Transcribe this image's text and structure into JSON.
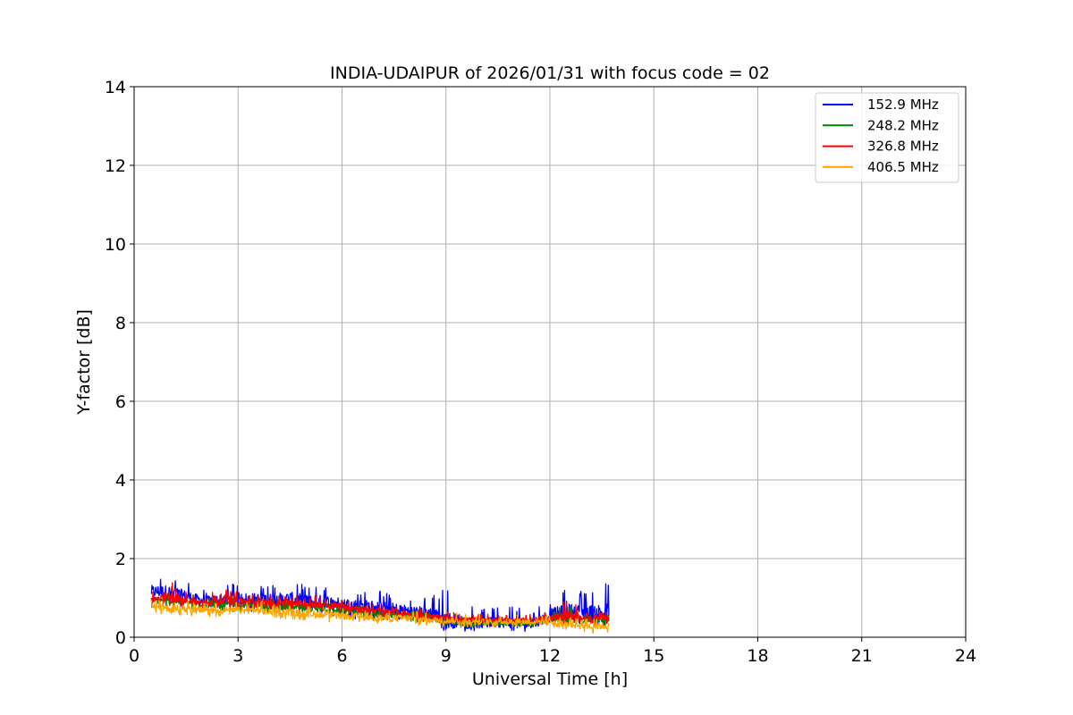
{
  "chart_data": {
    "type": "line",
    "title": "INDIA-UDAIPUR of 2026/01/31 with focus code = 02",
    "xlabel": "Universal Time [h]",
    "ylabel": "Y-factor [dB]",
    "xlim": [
      0,
      24
    ],
    "ylim": [
      0,
      14
    ],
    "xticks": [
      0,
      3,
      6,
      9,
      12,
      15,
      18,
      21,
      24
    ],
    "yticks": [
      0,
      2,
      4,
      6,
      8,
      10,
      12,
      14
    ],
    "grid": true,
    "legend_position": "top-right",
    "series": [
      {
        "name": "152.9 MHz",
        "color": "#0000ff",
        "x": [
          0.5,
          1.0,
          1.5,
          2.0,
          2.5,
          3.0,
          3.5,
          4.0,
          4.5,
          5.0,
          5.5,
          6.0,
          6.5,
          7.0,
          7.5,
          8.0,
          8.5,
          9.0,
          9.5,
          10.0,
          10.5,
          11.0,
          11.5,
          12.0,
          12.5,
          13.0,
          13.7
        ],
        "y": [
          1.2,
          1.2,
          1.05,
          0.95,
          0.95,
          1.0,
          1.0,
          0.95,
          1.0,
          0.95,
          0.95,
          0.9,
          0.85,
          0.8,
          0.75,
          0.7,
          0.65,
          0.3,
          0.35,
          0.3,
          0.35,
          0.3,
          0.3,
          0.6,
          0.65,
          0.6,
          0.6
        ],
        "y_low": [
          0.8,
          0.8,
          0.75,
          0.7,
          0.7,
          0.65,
          0.65,
          0.6,
          0.55,
          0.5,
          0.5,
          0.5,
          0.45,
          0.4,
          0.35,
          0.35,
          0.3,
          0.15,
          0.15,
          0.15,
          0.15,
          0.15,
          0.15,
          0.2,
          0.25,
          0.25,
          0.25
        ],
        "y_high": [
          1.55,
          1.55,
          1.45,
          1.2,
          1.35,
          1.4,
          1.35,
          1.4,
          1.45,
          1.3,
          1.3,
          1.2,
          1.15,
          1.2,
          1.1,
          1.0,
          1.0,
          1.35,
          0.9,
          0.7,
          0.95,
          0.8,
          0.7,
          0.95,
          1.25,
          1.2,
          1.4
        ]
      },
      {
        "name": "248.2 MHz",
        "color": "#008000",
        "x": [
          0.5,
          1.0,
          1.5,
          2.0,
          2.5,
          3.0,
          3.5,
          4.0,
          4.5,
          5.0,
          5.5,
          6.0,
          6.5,
          7.0,
          7.5,
          8.0,
          8.5,
          9.0,
          9.5,
          10.0,
          10.5,
          11.0,
          11.5,
          12.0,
          12.5,
          13.0,
          13.7
        ],
        "y": [
          0.95,
          0.95,
          0.9,
          0.85,
          0.85,
          0.85,
          0.85,
          0.8,
          0.8,
          0.75,
          0.75,
          0.7,
          0.65,
          0.6,
          0.55,
          0.55,
          0.5,
          0.4,
          0.35,
          0.35,
          0.35,
          0.35,
          0.35,
          0.45,
          0.45,
          0.45,
          0.45
        ],
        "y_low": [
          0.75,
          0.75,
          0.7,
          0.7,
          0.65,
          0.65,
          0.65,
          0.6,
          0.6,
          0.55,
          0.55,
          0.5,
          0.5,
          0.45,
          0.4,
          0.4,
          0.35,
          0.25,
          0.25,
          0.25,
          0.25,
          0.25,
          0.25,
          0.3,
          0.3,
          0.3,
          0.3
        ],
        "y_high": [
          1.15,
          1.15,
          1.1,
          1.0,
          1.0,
          1.0,
          1.0,
          0.95,
          0.95,
          0.9,
          0.9,
          0.85,
          0.8,
          0.75,
          0.7,
          0.7,
          0.65,
          0.55,
          0.5,
          0.5,
          0.5,
          0.5,
          0.5,
          0.6,
          0.95,
          0.6,
          0.6
        ]
      },
      {
        "name": "326.8 MHz",
        "color": "#ff0000",
        "x": [
          0.5,
          1.0,
          1.5,
          2.0,
          2.5,
          3.0,
          3.5,
          4.0,
          4.5,
          5.0,
          5.5,
          6.0,
          6.5,
          7.0,
          7.5,
          8.0,
          8.5,
          9.0,
          9.5,
          10.0,
          10.5,
          11.0,
          11.5,
          12.0,
          12.5,
          13.0,
          13.7
        ],
        "y": [
          0.95,
          0.95,
          0.95,
          0.9,
          0.95,
          0.95,
          0.9,
          0.9,
          0.9,
          0.85,
          0.85,
          0.8,
          0.75,
          0.7,
          0.65,
          0.6,
          0.55,
          0.5,
          0.45,
          0.45,
          0.45,
          0.45,
          0.45,
          0.5,
          0.5,
          0.5,
          0.5
        ],
        "y_low": [
          0.75,
          0.75,
          0.75,
          0.7,
          0.75,
          0.75,
          0.7,
          0.7,
          0.7,
          0.65,
          0.65,
          0.6,
          0.55,
          0.5,
          0.5,
          0.45,
          0.4,
          0.35,
          0.35,
          0.35,
          0.35,
          0.35,
          0.35,
          0.35,
          0.35,
          0.35,
          0.35
        ],
        "y_high": [
          1.2,
          1.6,
          1.15,
          1.1,
          1.4,
          1.15,
          1.1,
          1.1,
          1.1,
          1.05,
          1.05,
          1.0,
          0.9,
          0.85,
          0.8,
          0.75,
          0.7,
          0.65,
          0.6,
          0.6,
          0.6,
          0.6,
          0.6,
          0.7,
          1.05,
          0.65,
          0.65
        ]
      },
      {
        "name": "406.5 MHz",
        "color": "#ffa500",
        "x": [
          0.5,
          1.0,
          1.5,
          2.0,
          2.5,
          3.0,
          3.5,
          4.0,
          4.5,
          5.0,
          5.5,
          6.0,
          6.5,
          7.0,
          7.5,
          8.0,
          8.5,
          9.0,
          9.5,
          10.0,
          10.5,
          11.0,
          11.5,
          12.0,
          12.5,
          13.0,
          13.7
        ],
        "y": [
          0.8,
          0.75,
          0.75,
          0.7,
          0.7,
          0.7,
          0.7,
          0.65,
          0.65,
          0.6,
          0.6,
          0.55,
          0.55,
          0.5,
          0.5,
          0.5,
          0.45,
          0.45,
          0.4,
          0.4,
          0.4,
          0.4,
          0.4,
          0.4,
          0.35,
          0.3,
          0.3
        ],
        "y_low": [
          0.6,
          0.55,
          0.55,
          0.5,
          0.5,
          0.5,
          0.5,
          0.45,
          0.45,
          0.4,
          0.4,
          0.35,
          0.35,
          0.3,
          0.3,
          0.3,
          0.3,
          0.25,
          0.25,
          0.25,
          0.25,
          0.25,
          0.25,
          0.2,
          0.15,
          0.1,
          0.1
        ],
        "y_high": [
          1.0,
          0.95,
          0.95,
          0.9,
          0.9,
          0.9,
          0.9,
          0.85,
          0.85,
          0.8,
          0.8,
          0.75,
          0.75,
          0.7,
          0.7,
          0.7,
          0.65,
          0.65,
          0.6,
          0.6,
          0.6,
          0.6,
          0.6,
          0.6,
          0.55,
          0.5,
          0.5
        ]
      }
    ]
  }
}
